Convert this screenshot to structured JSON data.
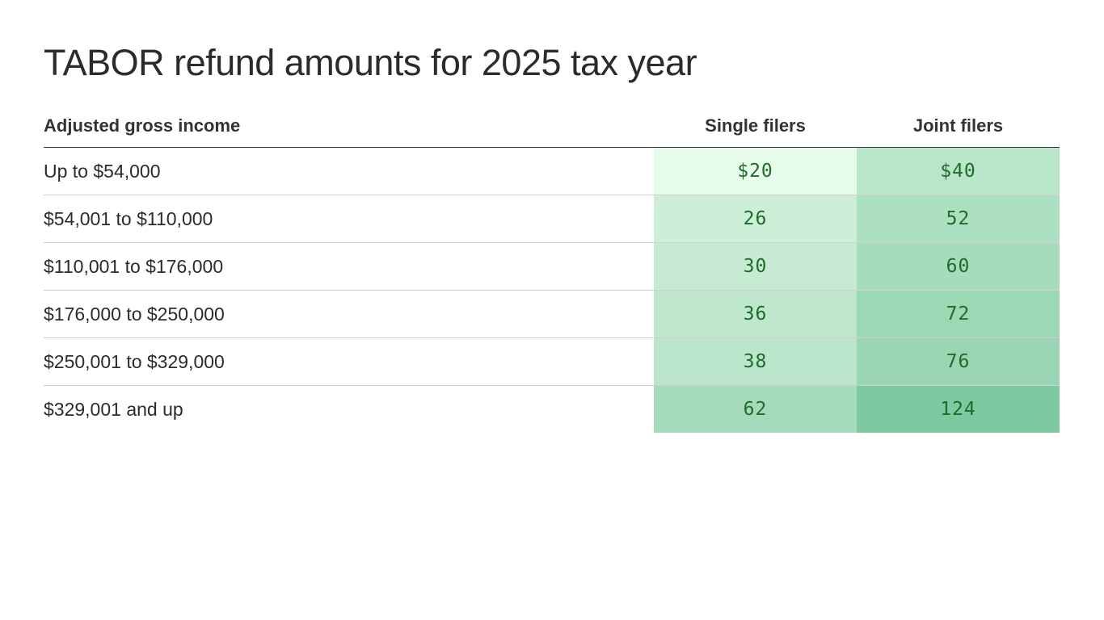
{
  "chart_data": {
    "type": "table",
    "title": "TABOR refund amounts for 2025 tax year",
    "columns": [
      "Adjusted gross income",
      "Single filers",
      "Joint filers"
    ],
    "rows": [
      {
        "income": "Up to $54,000",
        "single": "$20",
        "joint": "$40",
        "single_value": 20,
        "joint_value": 40
      },
      {
        "income": "$54,001 to $110,000",
        "single": "26",
        "joint": "52",
        "single_value": 26,
        "joint_value": 52
      },
      {
        "income": "$110,001 to $176,000",
        "single": "30",
        "joint": "60",
        "single_value": 30,
        "joint_value": 60
      },
      {
        "income": "$176,000 to $250,000",
        "single": "36",
        "joint": "72",
        "single_value": 36,
        "joint_value": 72
      },
      {
        "income": "$250,001 to $329,000",
        "single": "38",
        "joint": "76",
        "single_value": 38,
        "joint_value": 76
      },
      {
        "income": "$329,001 and up",
        "single": "62",
        "joint": "124",
        "single_value": 62,
        "joint_value": 124
      }
    ],
    "color_scale": {
      "low": "#e6fbe9",
      "high": "#7fc9a0"
    },
    "text_color": "#1f6b2a"
  }
}
